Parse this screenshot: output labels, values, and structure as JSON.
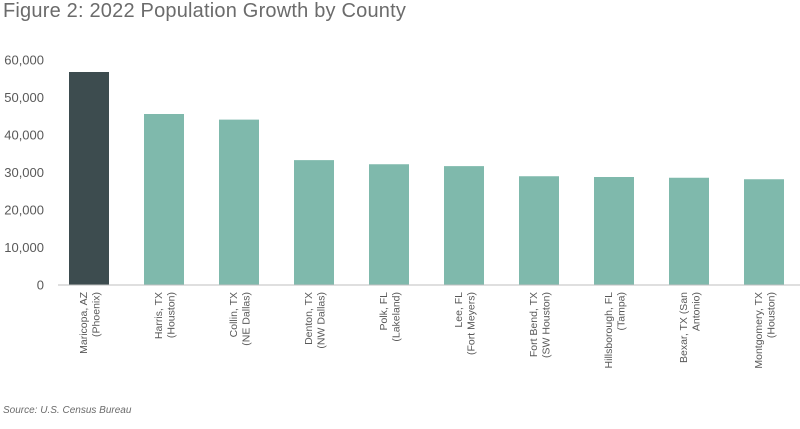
{
  "chart_data": {
    "type": "bar",
    "title": "Figure 2: 2022 Population Growth by County",
    "source": "Source: U.S. Census Bureau",
    "categories": [
      [
        "Maricopa, AZ",
        "(Phoenix)"
      ],
      [
        "Harris, TX",
        "(Houston)"
      ],
      [
        "Collin, TX",
        "(NE Dallas)"
      ],
      [
        "Denton, TX",
        "(NW Dallas)"
      ],
      [
        "Polk, FL",
        "(Lakeland)"
      ],
      [
        "Lee, FL",
        "(Fort Meyers)"
      ],
      [
        "Fort Bend, TX",
        "(SW Houston)"
      ],
      [
        "Hillsborough, FL",
        "(Tampa)"
      ],
      [
        "Bexar, TX (San",
        "Antonio)"
      ],
      [
        "Montgomery, TX",
        "(Houston)"
      ]
    ],
    "values": [
      56800,
      45600,
      44100,
      33300,
      32200,
      31700,
      29000,
      28800,
      28600,
      28200
    ],
    "ylim": [
      0,
      60000
    ],
    "yticks": [
      "0",
      "10,000",
      "20,000",
      "30,000",
      "40,000",
      "50,000",
      "60,000"
    ],
    "ytick_values": [
      0,
      10000,
      20000,
      30000,
      40000,
      50000,
      60000
    ],
    "grid": false,
    "colors": {
      "highlight": "#3d4c4f",
      "default": "#7fb9ac",
      "axis": "#bfbfbf"
    },
    "highlight_index": 0
  }
}
